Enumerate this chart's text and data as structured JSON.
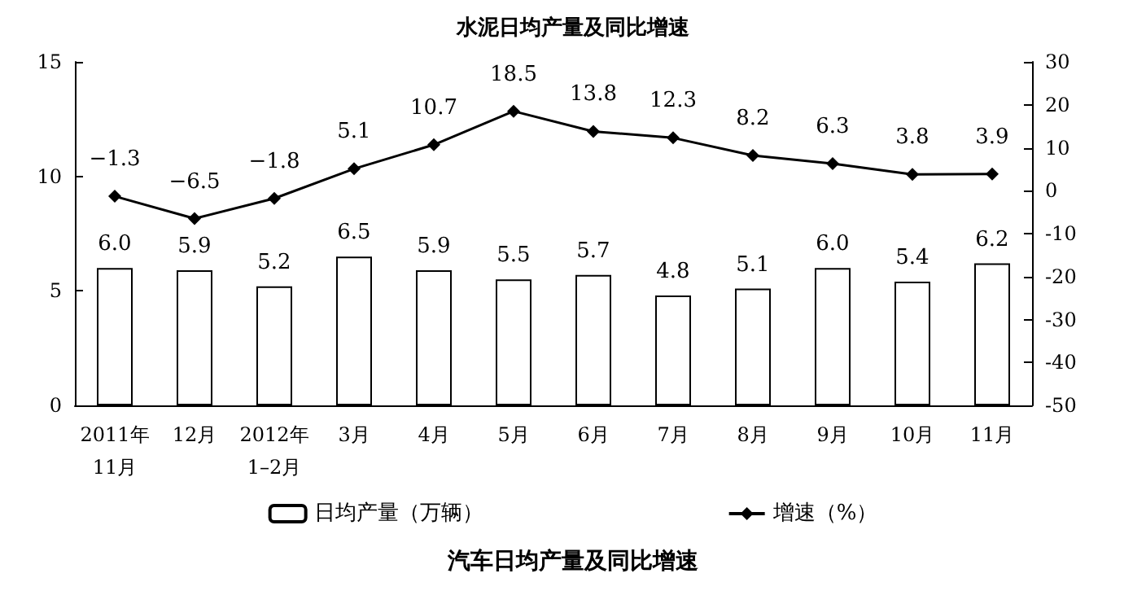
{
  "chart_data": {
    "type": "bar",
    "title": "汽车日均产量及同比增速",
    "annotations": [
      "水泥日均产量及同比增速"
    ],
    "categories": [
      "2011年\n11月",
      "12月",
      "2012年\n1–2月",
      "3月",
      "4月",
      "5月",
      "6月",
      "7月",
      "8月",
      "9月",
      "10月",
      "11月"
    ],
    "series": [
      {
        "name": "日均产量（万辆）",
        "color": "#ffffff",
        "values": [
          6.0,
          5.9,
          5.2,
          6.5,
          5.9,
          5.5,
          5.7,
          4.8,
          5.1,
          6.0,
          5.4,
          6.2
        ],
        "value_labels": [
          "6.0",
          "5.9",
          "5.2",
          "6.5",
          "5.9",
          "5.5",
          "5.7",
          "4.8",
          "5.1",
          "6.0",
          "5.4",
          "6.2"
        ]
      },
      {
        "name": "增速（%）",
        "type": "line",
        "axis": "y2",
        "color": "#000000",
        "values": [
          -1.3,
          -6.5,
          -1.8,
          5.1,
          10.7,
          18.5,
          13.8,
          12.3,
          8.2,
          6.3,
          3.8,
          3.9
        ],
        "value_labels": [
          "−1.3",
          "−6.5",
          "−1.8",
          "5.1",
          "10.7",
          "18.5",
          "13.8",
          "12.3",
          "8.2",
          "6.3",
          "3.8",
          "3.9"
        ]
      }
    ],
    "ylim": [
      0,
      15
    ],
    "yticks": [
      0,
      5,
      10,
      15
    ],
    "y2lim": [
      -50,
      30
    ],
    "y2ticks": [
      -50,
      -40,
      -30,
      -20,
      -10,
      0,
      10,
      20,
      30
    ],
    "legend": "bottom",
    "grid": false,
    "marker": "diamond",
    "line_style": "solid"
  }
}
